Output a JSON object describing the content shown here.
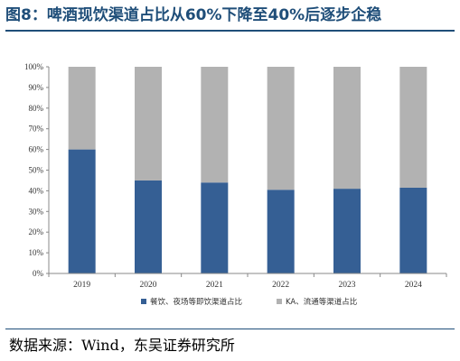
{
  "title": "图8：啤酒现饮渠道占比从60%下降至40%后逐步企稳",
  "source": "数据来源：Wind，东吴证券研究所",
  "chart_data": {
    "type": "bar",
    "stacked": true,
    "categories": [
      "2019",
      "2020",
      "2021",
      "2022",
      "2023",
      "2024"
    ],
    "series": [
      {
        "name": "餐饮、夜场等即饮渠道占比",
        "color": "#355f94",
        "values": [
          60,
          45,
          44,
          40.5,
          41,
          41.5
        ]
      },
      {
        "name": "KA、流通等渠道占比",
        "color": "#b2b2b2",
        "values": [
          40,
          55,
          56,
          59.5,
          59,
          58.5
        ]
      }
    ],
    "ylim": [
      0,
      100
    ],
    "yticks": [
      "0%",
      "10%",
      "20%",
      "30%",
      "40%",
      "50%",
      "60%",
      "70%",
      "80%",
      "90%",
      "100%"
    ],
    "grid": false,
    "legend": "bottom"
  }
}
